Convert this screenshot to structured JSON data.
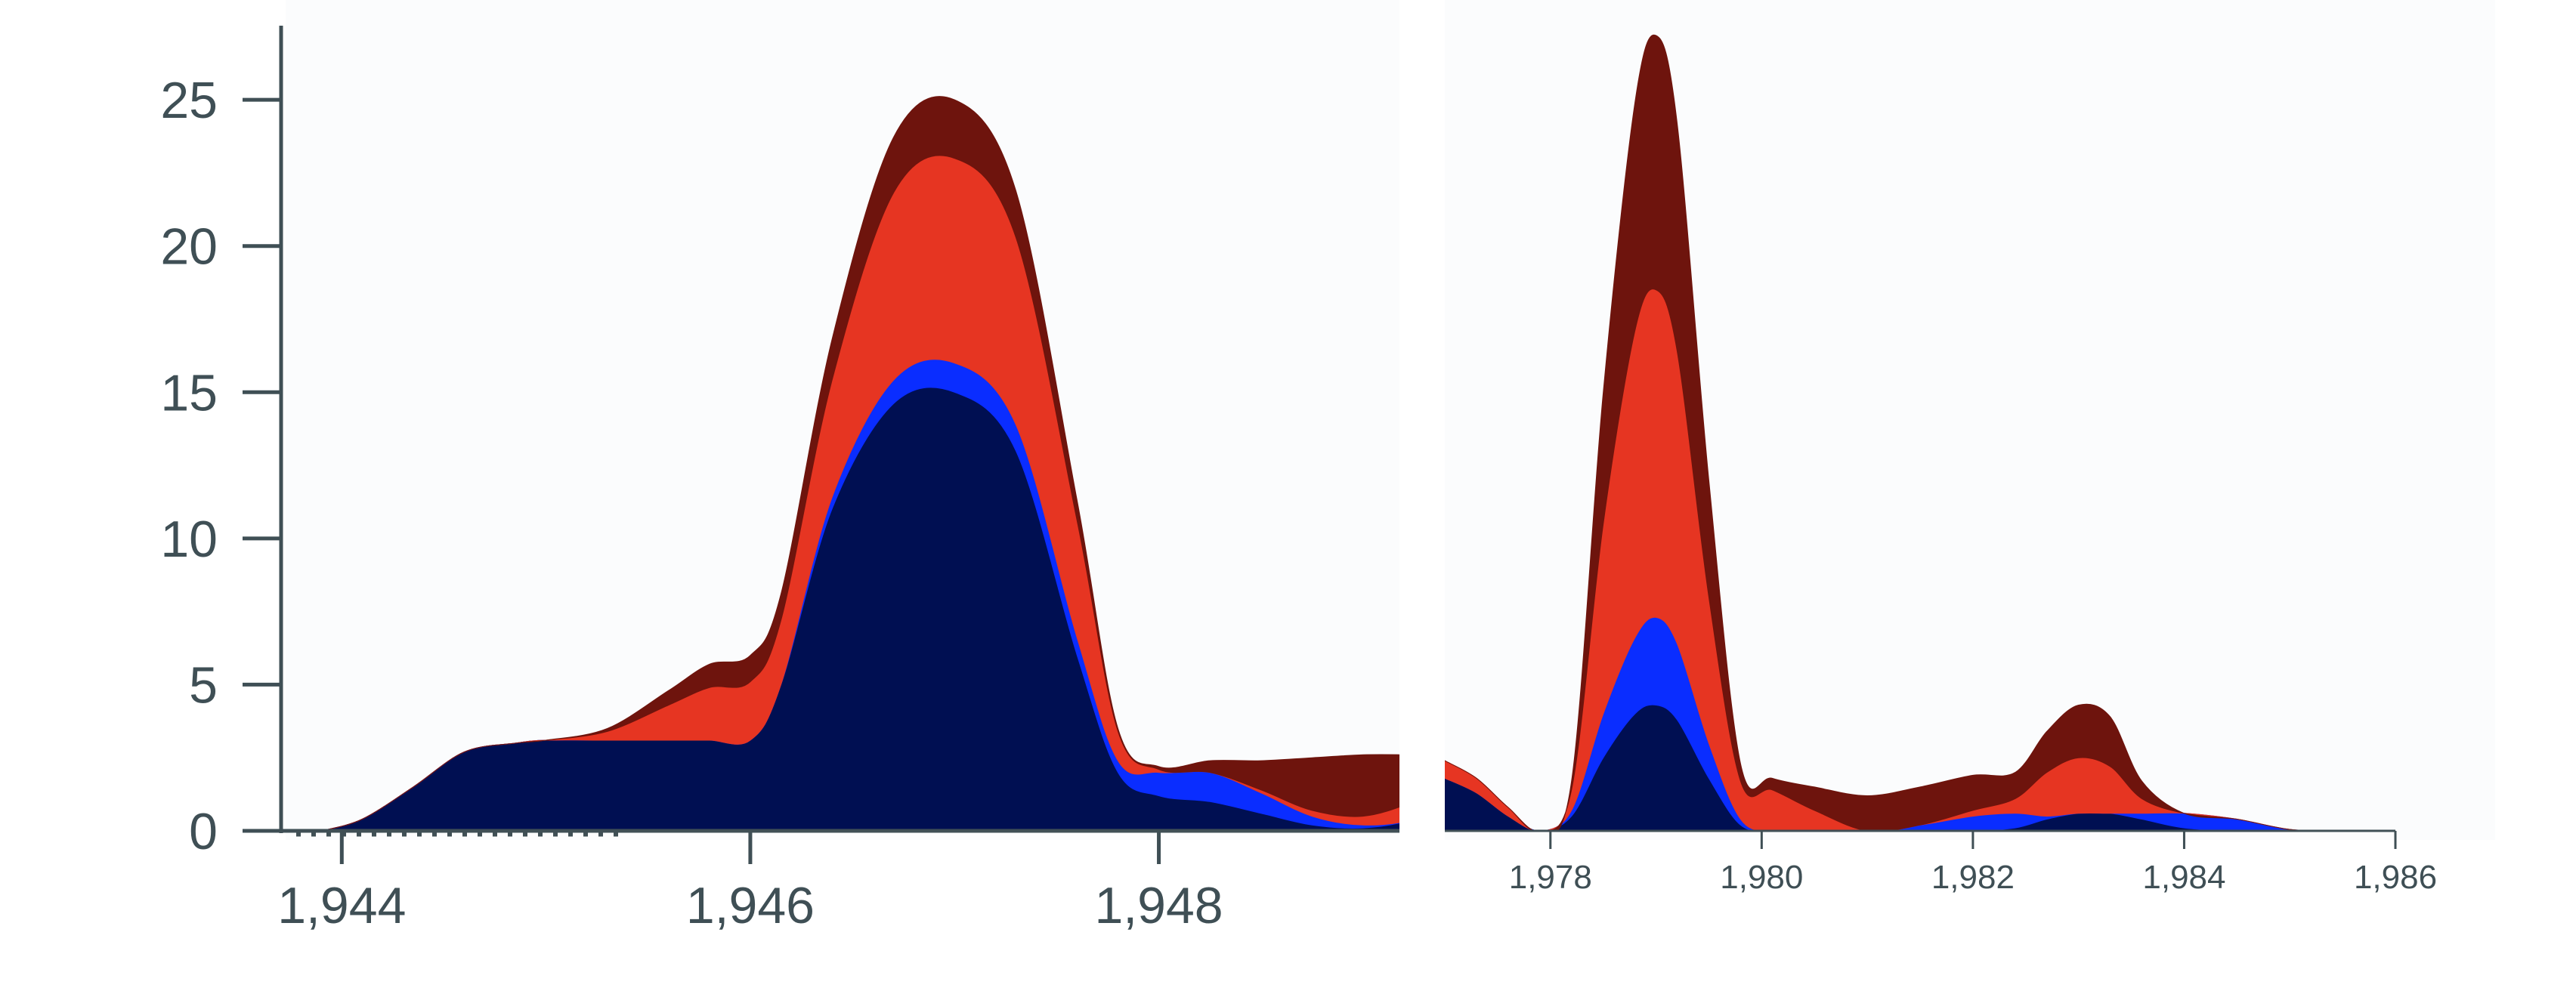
{
  "chart_data": [
    {
      "type": "area",
      "stacked": true,
      "xlim": [
        1943,
        1949.5
      ],
      "ylim": [
        0,
        28
      ],
      "y_ticks": [
        0,
        5,
        10,
        15,
        20,
        25
      ],
      "x_ticks": [
        1944,
        1946,
        1948
      ],
      "y_tick_labels": [
        "0",
        "5",
        "10",
        "15",
        "20",
        "25"
      ],
      "x_tick_labels": [
        "1,944",
        "1,946",
        "1,948"
      ],
      "x": [
        1943.9,
        1944.1,
        1944.35,
        1944.6,
        1944.85,
        1945.0,
        1945.3,
        1945.6,
        1945.8,
        1946.0,
        1946.15,
        1946.4,
        1946.7,
        1947.0,
        1947.3,
        1947.6,
        1947.8,
        1948.0,
        1948.25,
        1948.5,
        1948.75,
        1949.0,
        1949.25,
        1949.5
      ],
      "series": [
        {
          "color": "#000f52",
          "values": [
            0,
            0.4,
            1.5,
            2.7,
            3.0,
            3.1,
            3.1,
            3.1,
            3.1,
            3.1,
            5.0,
            11.0,
            14.6,
            15.0,
            13.0,
            6.0,
            2.0,
            1.2,
            1.0,
            0.6,
            0.2,
            0.1,
            0.4,
            1.2
          ]
        },
        {
          "color": "#0a2dff",
          "values": [
            0,
            0,
            0,
            0,
            0,
            0,
            0,
            0,
            0,
            0,
            0,
            0.4,
            0.8,
            1.0,
            0.9,
            0.6,
            0.4,
            0.8,
            1.0,
            0.7,
            0.3,
            0.1,
            0,
            0
          ]
        },
        {
          "color": "#e63522",
          "values": [
            0,
            0,
            0,
            0,
            0,
            0,
            0.3,
            1.2,
            1.8,
            2.0,
            2.2,
            4.0,
            6.4,
            7.0,
            6.4,
            4.0,
            1.0,
            0.1,
            0,
            0.1,
            0.2,
            0.3,
            0.6,
            0.6
          ]
        },
        {
          "color": "#6e140d",
          "values": [
            0,
            0,
            0,
            0,
            0,
            0,
            0.1,
            0.5,
            0.8,
            0.9,
            0.9,
            1.4,
            1.9,
            2.0,
            1.6,
            0.7,
            0.1,
            0.1,
            0.4,
            1.0,
            1.8,
            2.1,
            1.6,
            0.8
          ]
        }
      ]
    },
    {
      "type": "area",
      "stacked": true,
      "xlim": [
        1977,
        1986
      ],
      "ylim": [
        0,
        28
      ],
      "x_ticks": [
        1978,
        1980,
        1982,
        1984,
        1986
      ],
      "x_tick_labels": [
        "1,978",
        "1,980",
        "1,982",
        "1,984",
        "1,986"
      ],
      "x": [
        1977.0,
        1977.3,
        1977.6,
        1977.9,
        1978.2,
        1978.5,
        1978.8,
        1979.0,
        1979.2,
        1979.5,
        1979.8,
        1980.1,
        1980.5,
        1981.0,
        1981.5,
        1982.0,
        1982.4,
        1982.7,
        1983.0,
        1983.3,
        1983.6,
        1984.0,
        1984.5,
        1985.0,
        1985.5,
        1986.0
      ],
      "series": [
        {
          "color": "#000f52",
          "values": [
            1.8,
            1.3,
            0.5,
            0,
            0.5,
            2.5,
            4.0,
            4.3,
            3.8,
            1.8,
            0.2,
            0,
            0,
            0,
            0,
            0,
            0.1,
            0.4,
            0.6,
            0.6,
            0.4,
            0.1,
            0,
            0,
            0,
            0
          ]
        },
        {
          "color": "#0a2dff",
          "values": [
            0,
            0,
            0,
            0,
            0.2,
            1.5,
            2.6,
            3.0,
            2.6,
            1.2,
            0.2,
            0,
            0,
            0,
            0.2,
            0.5,
            0.5,
            0.1,
            0,
            0,
            0.2,
            0.5,
            0.4,
            0.05,
            0,
            0
          ]
        },
        {
          "color": "#e63522",
          "values": [
            0.6,
            0.5,
            0.3,
            0,
            0.7,
            6.5,
            10.5,
            11.2,
            10.0,
            5.0,
            1.3,
            1.4,
            0.7,
            0,
            0,
            0.2,
            0.5,
            1.5,
            1.9,
            1.6,
            0.5,
            0,
            0,
            0,
            0,
            0
          ]
        },
        {
          "color": "#6e140d",
          "values": [
            0,
            0,
            0,
            0,
            0.3,
            4.5,
            7.8,
            8.7,
            7.8,
            4.0,
            0.6,
            0.4,
            0.8,
            1.2,
            1.3,
            1.2,
            0.9,
            1.4,
            1.8,
            1.7,
            0.6,
            0,
            0,
            0,
            0,
            0
          ]
        }
      ]
    }
  ]
}
